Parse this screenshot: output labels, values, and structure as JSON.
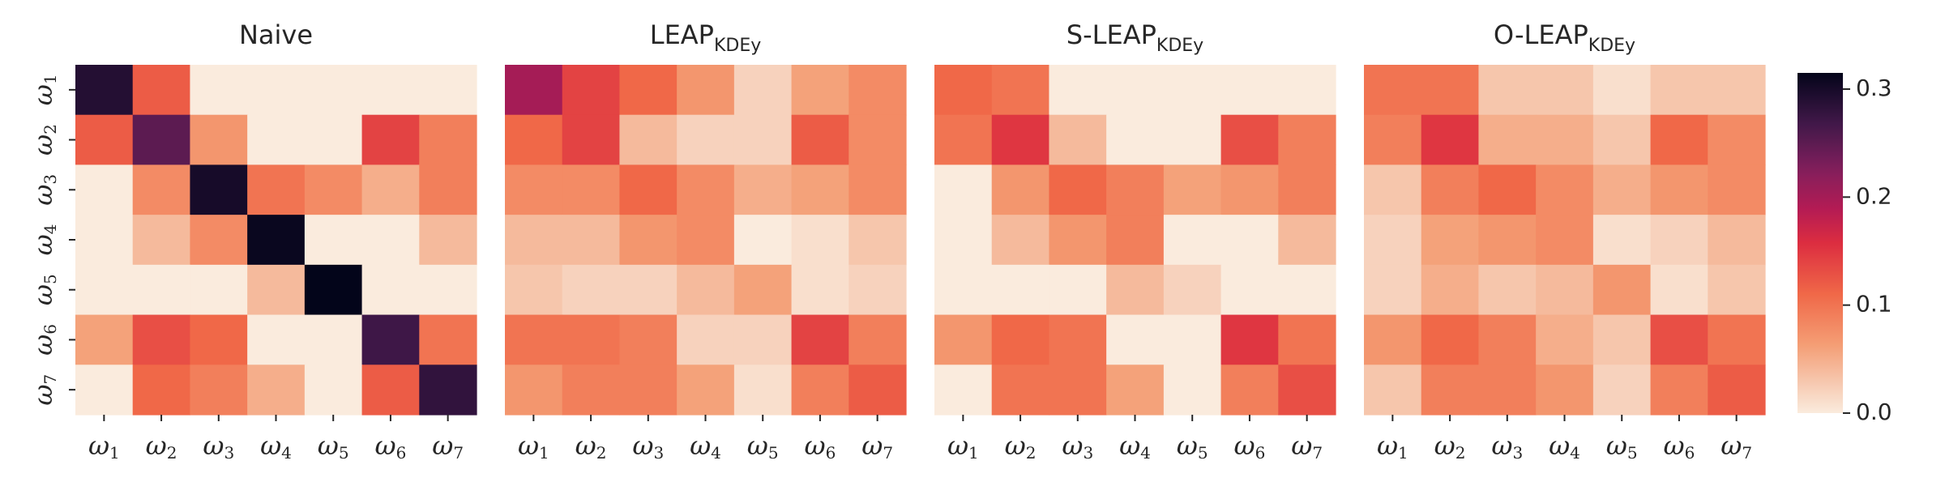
{
  "chart_data": [
    {
      "type": "heatmap",
      "title": "Naive",
      "title_parts": [
        "Naive",
        ""
      ],
      "x_ticks": [
        "ω1",
        "ω2",
        "ω3",
        "ω4",
        "ω5",
        "ω6",
        "ω7"
      ],
      "y_ticks": [
        "ω1",
        "ω2",
        "ω3",
        "ω4",
        "ω5",
        "ω6",
        "ω7"
      ],
      "values": [
        [
          0.29,
          0.12,
          0.0,
          0.0,
          0.0,
          0.0,
          0.0
        ],
        [
          0.12,
          0.25,
          0.07,
          0.0,
          0.0,
          0.14,
          0.09
        ],
        [
          0.0,
          0.08,
          0.3,
          0.1,
          0.08,
          0.05,
          0.09
        ],
        [
          0.0,
          0.04,
          0.08,
          0.31,
          0.0,
          0.0,
          0.04
        ],
        [
          0.0,
          0.0,
          0.0,
          0.04,
          0.32,
          0.0,
          0.0
        ],
        [
          0.06,
          0.13,
          0.11,
          0.0,
          0.0,
          0.27,
          0.1
        ],
        [
          0.0,
          0.11,
          0.09,
          0.05,
          0.0,
          0.12,
          0.28
        ]
      ]
    },
    {
      "type": "heatmap",
      "title": "LEAPKDEy",
      "title_parts": [
        "LEAP",
        "KDEy"
      ],
      "x_ticks": [
        "ω1",
        "ω2",
        "ω3",
        "ω4",
        "ω5",
        "ω6",
        "ω7"
      ],
      "y_ticks": [],
      "values": [
        [
          0.2,
          0.14,
          0.11,
          0.07,
          0.02,
          0.06,
          0.08
        ],
        [
          0.11,
          0.14,
          0.04,
          0.02,
          0.02,
          0.12,
          0.08
        ],
        [
          0.08,
          0.08,
          0.11,
          0.08,
          0.05,
          0.06,
          0.08
        ],
        [
          0.04,
          0.04,
          0.07,
          0.08,
          0.0,
          0.01,
          0.03
        ],
        [
          0.03,
          0.02,
          0.02,
          0.04,
          0.06,
          0.01,
          0.02
        ],
        [
          0.1,
          0.1,
          0.09,
          0.02,
          0.02,
          0.14,
          0.09
        ],
        [
          0.07,
          0.09,
          0.09,
          0.06,
          0.01,
          0.09,
          0.12
        ]
      ]
    },
    {
      "type": "heatmap",
      "title": "S-LEAPKDEy",
      "title_parts": [
        "S-LEAP",
        "KDEy"
      ],
      "x_ticks": [
        "ω1",
        "ω2",
        "ω3",
        "ω4",
        "ω5",
        "ω6",
        "ω7"
      ],
      "y_ticks": [],
      "values": [
        [
          0.11,
          0.1,
          0.0,
          0.0,
          0.0,
          0.0,
          0.0
        ],
        [
          0.1,
          0.15,
          0.04,
          0.0,
          0.0,
          0.13,
          0.09
        ],
        [
          0.0,
          0.07,
          0.11,
          0.09,
          0.06,
          0.07,
          0.09
        ],
        [
          0.0,
          0.04,
          0.07,
          0.09,
          0.0,
          0.0,
          0.04
        ],
        [
          0.0,
          0.0,
          0.0,
          0.04,
          0.02,
          0.0,
          0.0
        ],
        [
          0.07,
          0.11,
          0.1,
          0.0,
          0.0,
          0.15,
          0.1
        ],
        [
          0.0,
          0.1,
          0.1,
          0.06,
          0.0,
          0.09,
          0.13
        ]
      ]
    },
    {
      "type": "heatmap",
      "title": "O-LEAPKDEy",
      "title_parts": [
        "O-LEAP",
        "KDEy"
      ],
      "x_ticks": [
        "ω1",
        "ω2",
        "ω3",
        "ω4",
        "ω5",
        "ω6",
        "ω7"
      ],
      "y_ticks": [],
      "values": [
        [
          0.1,
          0.1,
          0.03,
          0.03,
          0.01,
          0.03,
          0.03
        ],
        [
          0.09,
          0.15,
          0.05,
          0.05,
          0.03,
          0.11,
          0.08
        ],
        [
          0.03,
          0.09,
          0.11,
          0.08,
          0.05,
          0.07,
          0.08
        ],
        [
          0.02,
          0.06,
          0.07,
          0.08,
          0.01,
          0.02,
          0.04
        ],
        [
          0.02,
          0.05,
          0.03,
          0.04,
          0.07,
          0.01,
          0.03
        ],
        [
          0.07,
          0.11,
          0.09,
          0.05,
          0.03,
          0.13,
          0.1
        ],
        [
          0.03,
          0.09,
          0.09,
          0.07,
          0.02,
          0.09,
          0.12
        ]
      ]
    }
  ],
  "colorbar": {
    "min": 0.0,
    "max": 0.315,
    "ticks": [
      0.0,
      0.1,
      0.2,
      0.3
    ],
    "tick_labels": [
      "0.0",
      "0.1",
      "0.2",
      "0.3"
    ],
    "colormap": "rocket_r"
  }
}
